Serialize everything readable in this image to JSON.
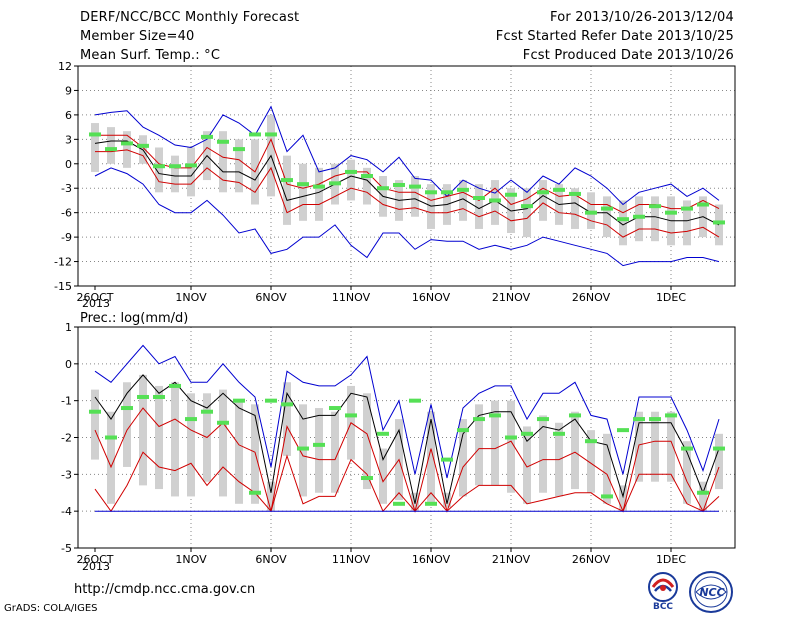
{
  "header": {
    "left_line1": "DERF/NCC/BCC Monthly Forecast",
    "left_line2": "Member Size=40",
    "left_line3": "Mean Surf. Temp.: °C",
    "right_line1": "For 2013/10/26-2013/12/04",
    "right_line2": "Fcst Started Refer Date 2013/10/25",
    "right_line3": "Fcst Produced Date 2013/10/26"
  },
  "footer": {
    "url": "http://cmdp.ncc.cma.gov.cn",
    "grads": "GrADS: COLA/IGES",
    "logo1_text": "BCC",
    "logo2_text": "NCC"
  },
  "colors": {
    "envelope": "#0000d0",
    "percentile": "#d00000",
    "median": "#000000",
    "box": "#d0d0d0",
    "mean_marker": "#55e055",
    "grid": "#888888"
  },
  "chart_data": [
    {
      "type": "box",
      "title": "Mean Surf. Temp.: °C",
      "x_tick_labels": [
        "26OCT",
        "1NOV",
        "6NOV",
        "11NOV",
        "16NOV",
        "21NOV",
        "26NOV",
        "1DEC"
      ],
      "x_year_label": "2013",
      "x_dates": [
        "2013-10-26",
        "2013-10-27",
        "2013-10-28",
        "2013-10-29",
        "2013-10-30",
        "2013-10-31",
        "2013-11-01",
        "2013-11-02",
        "2013-11-03",
        "2013-11-04",
        "2013-11-05",
        "2013-11-06",
        "2013-11-07",
        "2013-11-08",
        "2013-11-09",
        "2013-11-10",
        "2013-11-11",
        "2013-11-12",
        "2013-11-13",
        "2013-11-14",
        "2013-11-15",
        "2013-11-16",
        "2013-11-17",
        "2013-11-18",
        "2013-11-19",
        "2013-11-20",
        "2013-11-21",
        "2013-11-22",
        "2013-11-23",
        "2013-11-24",
        "2013-11-25",
        "2013-11-26",
        "2013-11-27",
        "2013-11-28",
        "2013-11-29",
        "2013-11-30",
        "2013-12-01",
        "2013-12-02",
        "2013-12-03",
        "2013-12-04"
      ],
      "ylim": [
        -15,
        12
      ],
      "yticks": [
        -15,
        -12,
        -9,
        -6,
        -3,
        0,
        3,
        6,
        9,
        12
      ],
      "grid": true,
      "series": [
        {
          "name": "",
          "role": "max",
          "color": "#0000d0",
          "values": [
            6,
            6.3,
            6.5,
            4.5,
            3.5,
            2.3,
            2,
            3,
            6,
            5,
            3.5,
            7,
            1.5,
            3.5,
            -1,
            -0.5,
            1,
            0.5,
            -1,
            0.8,
            -1.8,
            -2,
            -4,
            -2,
            -3,
            -3.6,
            -2,
            -3.5,
            -1.5,
            -2.5,
            -0.5,
            -1.5,
            -3,
            -5,
            -3.5,
            -3,
            -2.5,
            -4,
            -3,
            -4.5
          ]
        },
        {
          "name": "",
          "role": "p75",
          "color": "#d00000",
          "values": [
            3.5,
            3.5,
            3.5,
            2,
            0,
            -0.5,
            -0.5,
            2,
            0.8,
            0.5,
            -1,
            3,
            -2.5,
            -3,
            -2.5,
            -1.5,
            -1,
            -1,
            -3,
            -3.5,
            -3.5,
            -4.5,
            -4,
            -3.5,
            -4.5,
            -3,
            -5,
            -4.3,
            -3,
            -4,
            -3.8,
            -5,
            -5,
            -6,
            -5,
            -5,
            -5.5,
            -5.5,
            -4.5,
            -5.5
          ]
        },
        {
          "name": "",
          "role": "median",
          "color": "#000000",
          "values": [
            2.5,
            2.8,
            2.8,
            1.7,
            -1.2,
            -1.5,
            -1.5,
            1,
            -1,
            -1,
            -2,
            1,
            -4.5,
            -4,
            -3.5,
            -2.5,
            -1.5,
            -2,
            -4,
            -4.5,
            -4.3,
            -5.2,
            -5,
            -4.3,
            -5.5,
            -4.5,
            -5.8,
            -5.5,
            -3.9,
            -5,
            -4.8,
            -6,
            -6,
            -7.5,
            -6.5,
            -6.5,
            -7,
            -7,
            -6.5,
            -7.5
          ]
        },
        {
          "name": "",
          "role": "p25",
          "color": "#d00000",
          "values": [
            1.5,
            1.5,
            1.7,
            1,
            -2.2,
            -2.5,
            -2.5,
            -0.5,
            -2,
            -2.3,
            -3.5,
            -0.5,
            -6,
            -5,
            -5,
            -4,
            -3,
            -3.5,
            -5,
            -5.6,
            -5.4,
            -6,
            -6,
            -5.5,
            -6.5,
            -5.8,
            -7,
            -6.7,
            -4.8,
            -6,
            -6.2,
            -7,
            -7.5,
            -9,
            -8,
            -8,
            -8.5,
            -8.3,
            -7.8,
            -9
          ]
        },
        {
          "name": "",
          "role": "min",
          "color": "#0000d0",
          "values": [
            -1.5,
            -0.5,
            -1.2,
            -2.5,
            -5,
            -6,
            -6,
            -4.5,
            -6.3,
            -8.5,
            -8,
            -11,
            -10.5,
            -9,
            -9,
            -7.5,
            -10,
            -11.5,
            -8.5,
            -8.5,
            -10.5,
            -9.3,
            -9.5,
            -9.5,
            -10.5,
            -10,
            -10.5,
            -10,
            -9,
            -9.5,
            -10,
            -10.5,
            -11,
            -12.5,
            -12,
            -12,
            -12,
            -11.5,
            -11.5,
            -12
          ]
        }
      ],
      "boxes": {
        "upper": [
          5,
          4.5,
          4,
          3.5,
          2,
          1,
          2,
          4,
          4,
          3,
          3,
          6,
          1,
          0,
          -0.5,
          0,
          0.5,
          -0.5,
          -1.5,
          -2,
          -1.5,
          -2.5,
          -2.5,
          -2,
          -2.5,
          -2,
          -3,
          -3,
          -2,
          -2.5,
          -3,
          -3.5,
          -4,
          -4.5,
          -4,
          -4,
          -4,
          -4.5,
          -4,
          -5
        ]
      },
      "boxes_lower": [
        -1,
        0,
        -0.5,
        0,
        -3.5,
        -3.5,
        -4,
        -2,
        -3.5,
        -3.5,
        -5,
        -4,
        -7.5,
        -7,
        -7,
        -5,
        -4.5,
        -5,
        -6.5,
        -7,
        -6.5,
        -8,
        -7.5,
        -7,
        -8,
        -7.5,
        -8.5,
        -9,
        -7,
        -7.5,
        -8,
        -8,
        -9,
        -10,
        -9.5,
        -9.5,
        -10,
        -10,
        -9,
        -10
      ],
      "mean_markers": [
        3.6,
        1.8,
        2.5,
        2.2,
        -0.3,
        -0.3,
        -0.2,
        3.3,
        2.7,
        1.8,
        3.6,
        3.6,
        -2,
        -2.5,
        -2.8,
        -2.4,
        -1,
        -1.5,
        -3,
        -2.6,
        -2.8,
        -3.5,
        -3.5,
        -3.2,
        -4.2,
        -4.5,
        -3.8,
        -5.2,
        -3.5,
        -3.2,
        -3.7,
        -6,
        -5.5,
        -6.8,
        -6.5,
        -5.2,
        -6,
        -5.5,
        -5,
        -7.2
      ]
    },
    {
      "type": "box",
      "title": "Prec.: log(mm/d)",
      "x_tick_labels": [
        "26OCT",
        "1NOV",
        "6NOV",
        "11NOV",
        "16NOV",
        "21NOV",
        "26NOV",
        "1DEC"
      ],
      "x_year_label": "2013",
      "ylim": [
        -5,
        1
      ],
      "yticks": [
        -5,
        -4,
        -3,
        -2,
        -1,
        0,
        1
      ],
      "grid": true,
      "series": [
        {
          "name": "",
          "role": "max",
          "color": "#0000d0",
          "values": [
            -0.2,
            -0.5,
            0,
            0.5,
            0,
            0.2,
            -0.5,
            -0.5,
            0,
            -0.5,
            -0.9,
            -2.8,
            -0.2,
            -0.5,
            -0.6,
            -0.6,
            -0.3,
            0.2,
            -1.8,
            -1,
            -3,
            -1.1,
            -3.1,
            -1.2,
            -0.8,
            -0.6,
            -0.6,
            -1.5,
            -0.8,
            -0.8,
            -0.5,
            -1.4,
            -1.5,
            -3,
            -0.9,
            -0.9,
            -0.9,
            -1.8,
            -2.9,
            -1.5
          ]
        },
        {
          "name": "",
          "role": "p75",
          "color": "#000000",
          "values": [
            -0.9,
            -1.5,
            -0.8,
            -0.3,
            -0.8,
            -0.5,
            -1,
            -1.2,
            -0.8,
            -1.2,
            -1.4,
            -3.5,
            -0.8,
            -1.5,
            -1.4,
            -1.4,
            -0.8,
            -0.9,
            -2.6,
            -1.8,
            -3.8,
            -1.5,
            -3.8,
            -1.9,
            -1.4,
            -1.3,
            -1.3,
            -2.1,
            -1.7,
            -1.8,
            -1.5,
            -2.1,
            -2.2,
            -3.6,
            -1.6,
            -1.6,
            -1.6,
            -2.4,
            -3.5,
            -2.3
          ]
        },
        {
          "name": "",
          "role": "median",
          "color": "#d00000",
          "values": [
            -1.8,
            -2.8,
            -1.8,
            -1.2,
            -1.7,
            -1.5,
            -1.8,
            -2,
            -1.6,
            -2.2,
            -2.4,
            -4,
            -1.7,
            -2.5,
            -2.6,
            -2.6,
            -1.6,
            -1.9,
            -3.2,
            -2.6,
            -4,
            -2.3,
            -4,
            -2.8,
            -2.3,
            -2.3,
            -2.1,
            -2.8,
            -2.6,
            -2.6,
            -2.4,
            -2.7,
            -3,
            -4,
            -2.2,
            -2.1,
            -2.1,
            -3.2,
            -4,
            -2.8
          ]
        },
        {
          "name": "",
          "role": "p25",
          "color": "#d00000",
          "values": [
            -3.4,
            -4,
            -3.3,
            -2.4,
            -2.8,
            -2.9,
            -2.7,
            -3.3,
            -2.8,
            -3.2,
            -3.5,
            -4,
            -2.5,
            -3.8,
            -3.6,
            -3.6,
            -2.6,
            -3,
            -4,
            -3.5,
            -4,
            -3.5,
            -4,
            -3.6,
            -3.3,
            -3.3,
            -3.3,
            -3.8,
            -3.7,
            -3.6,
            -3.5,
            -3.5,
            -3.8,
            -4,
            -3,
            -3,
            -3,
            -3.8,
            -4,
            -3.6
          ]
        },
        {
          "name": "",
          "role": "min",
          "color": "#0000d0",
          "values": [
            -4,
            -4,
            -4,
            -4,
            -4,
            -4,
            -4,
            -4,
            -4,
            -4,
            -4,
            -4,
            -4,
            -4,
            -4,
            -4,
            -4,
            -4,
            -4,
            -4,
            -4,
            -4,
            -4,
            -4,
            -4,
            -4,
            -4,
            -4,
            -4,
            -4,
            -4,
            -4,
            -4,
            -4,
            -4,
            -4,
            -4,
            -4,
            -4,
            -4
          ]
        }
      ],
      "boxes": {
        "upper": [
          -0.7,
          -1.3,
          -0.5,
          -0.3,
          -0.6,
          -0.5,
          -0.8,
          -0.8,
          -0.7,
          -1,
          -1.1,
          -3.2,
          -0.5,
          -1.1,
          -1.2,
          -1.3,
          -0.6,
          -0.8,
          -2.3,
          -1.5,
          -3.5,
          -1.3,
          -3.5,
          -1.5,
          -1.1,
          -1,
          -1,
          -1.7,
          -1.4,
          -1.6,
          -1.3,
          -1.8,
          -1.9,
          -3.3,
          -1.3,
          -1.3,
          -1.3,
          -2.1,
          -3.2,
          -1.9
        ]
      },
      "boxes_lower": [
        -2.6,
        -3.8,
        -2.8,
        -3.3,
        -3.4,
        -3.6,
        -3.6,
        -3.2,
        -3.6,
        -3.8,
        -3.8,
        -4,
        -2.5,
        -3.6,
        -3.5,
        -3.5,
        -2.6,
        -3.4,
        -3.8,
        -3.7,
        -4,
        -3.8,
        -3.9,
        -3.6,
        -3.3,
        -3.3,
        -3.5,
        -3.8,
        -3.5,
        -3.6,
        -3.4,
        -3.5,
        -3.8,
        -4,
        -3.2,
        -3.2,
        -3.2,
        -3.8,
        -4,
        -3.4
      ],
      "mean_markers": [
        -1.3,
        -2,
        -1.2,
        -0.9,
        -0.9,
        -0.6,
        -1.5,
        -1.3,
        -1.6,
        -1,
        -3.5,
        -1,
        -1.1,
        -2.3,
        -2.2,
        -1.2,
        -1.4,
        -3.1,
        -1.9,
        -3.8,
        -1,
        -3.8,
        -2.6,
        -1.8,
        -1.5,
        -1.4,
        -2,
        -1.9,
        -1.5,
        -1.9,
        -1.4,
        -2.1,
        -3.6,
        -1.8,
        -1.5,
        -1.5,
        -1.4,
        -2.3,
        -3.5,
        -2.3
      ]
    }
  ]
}
